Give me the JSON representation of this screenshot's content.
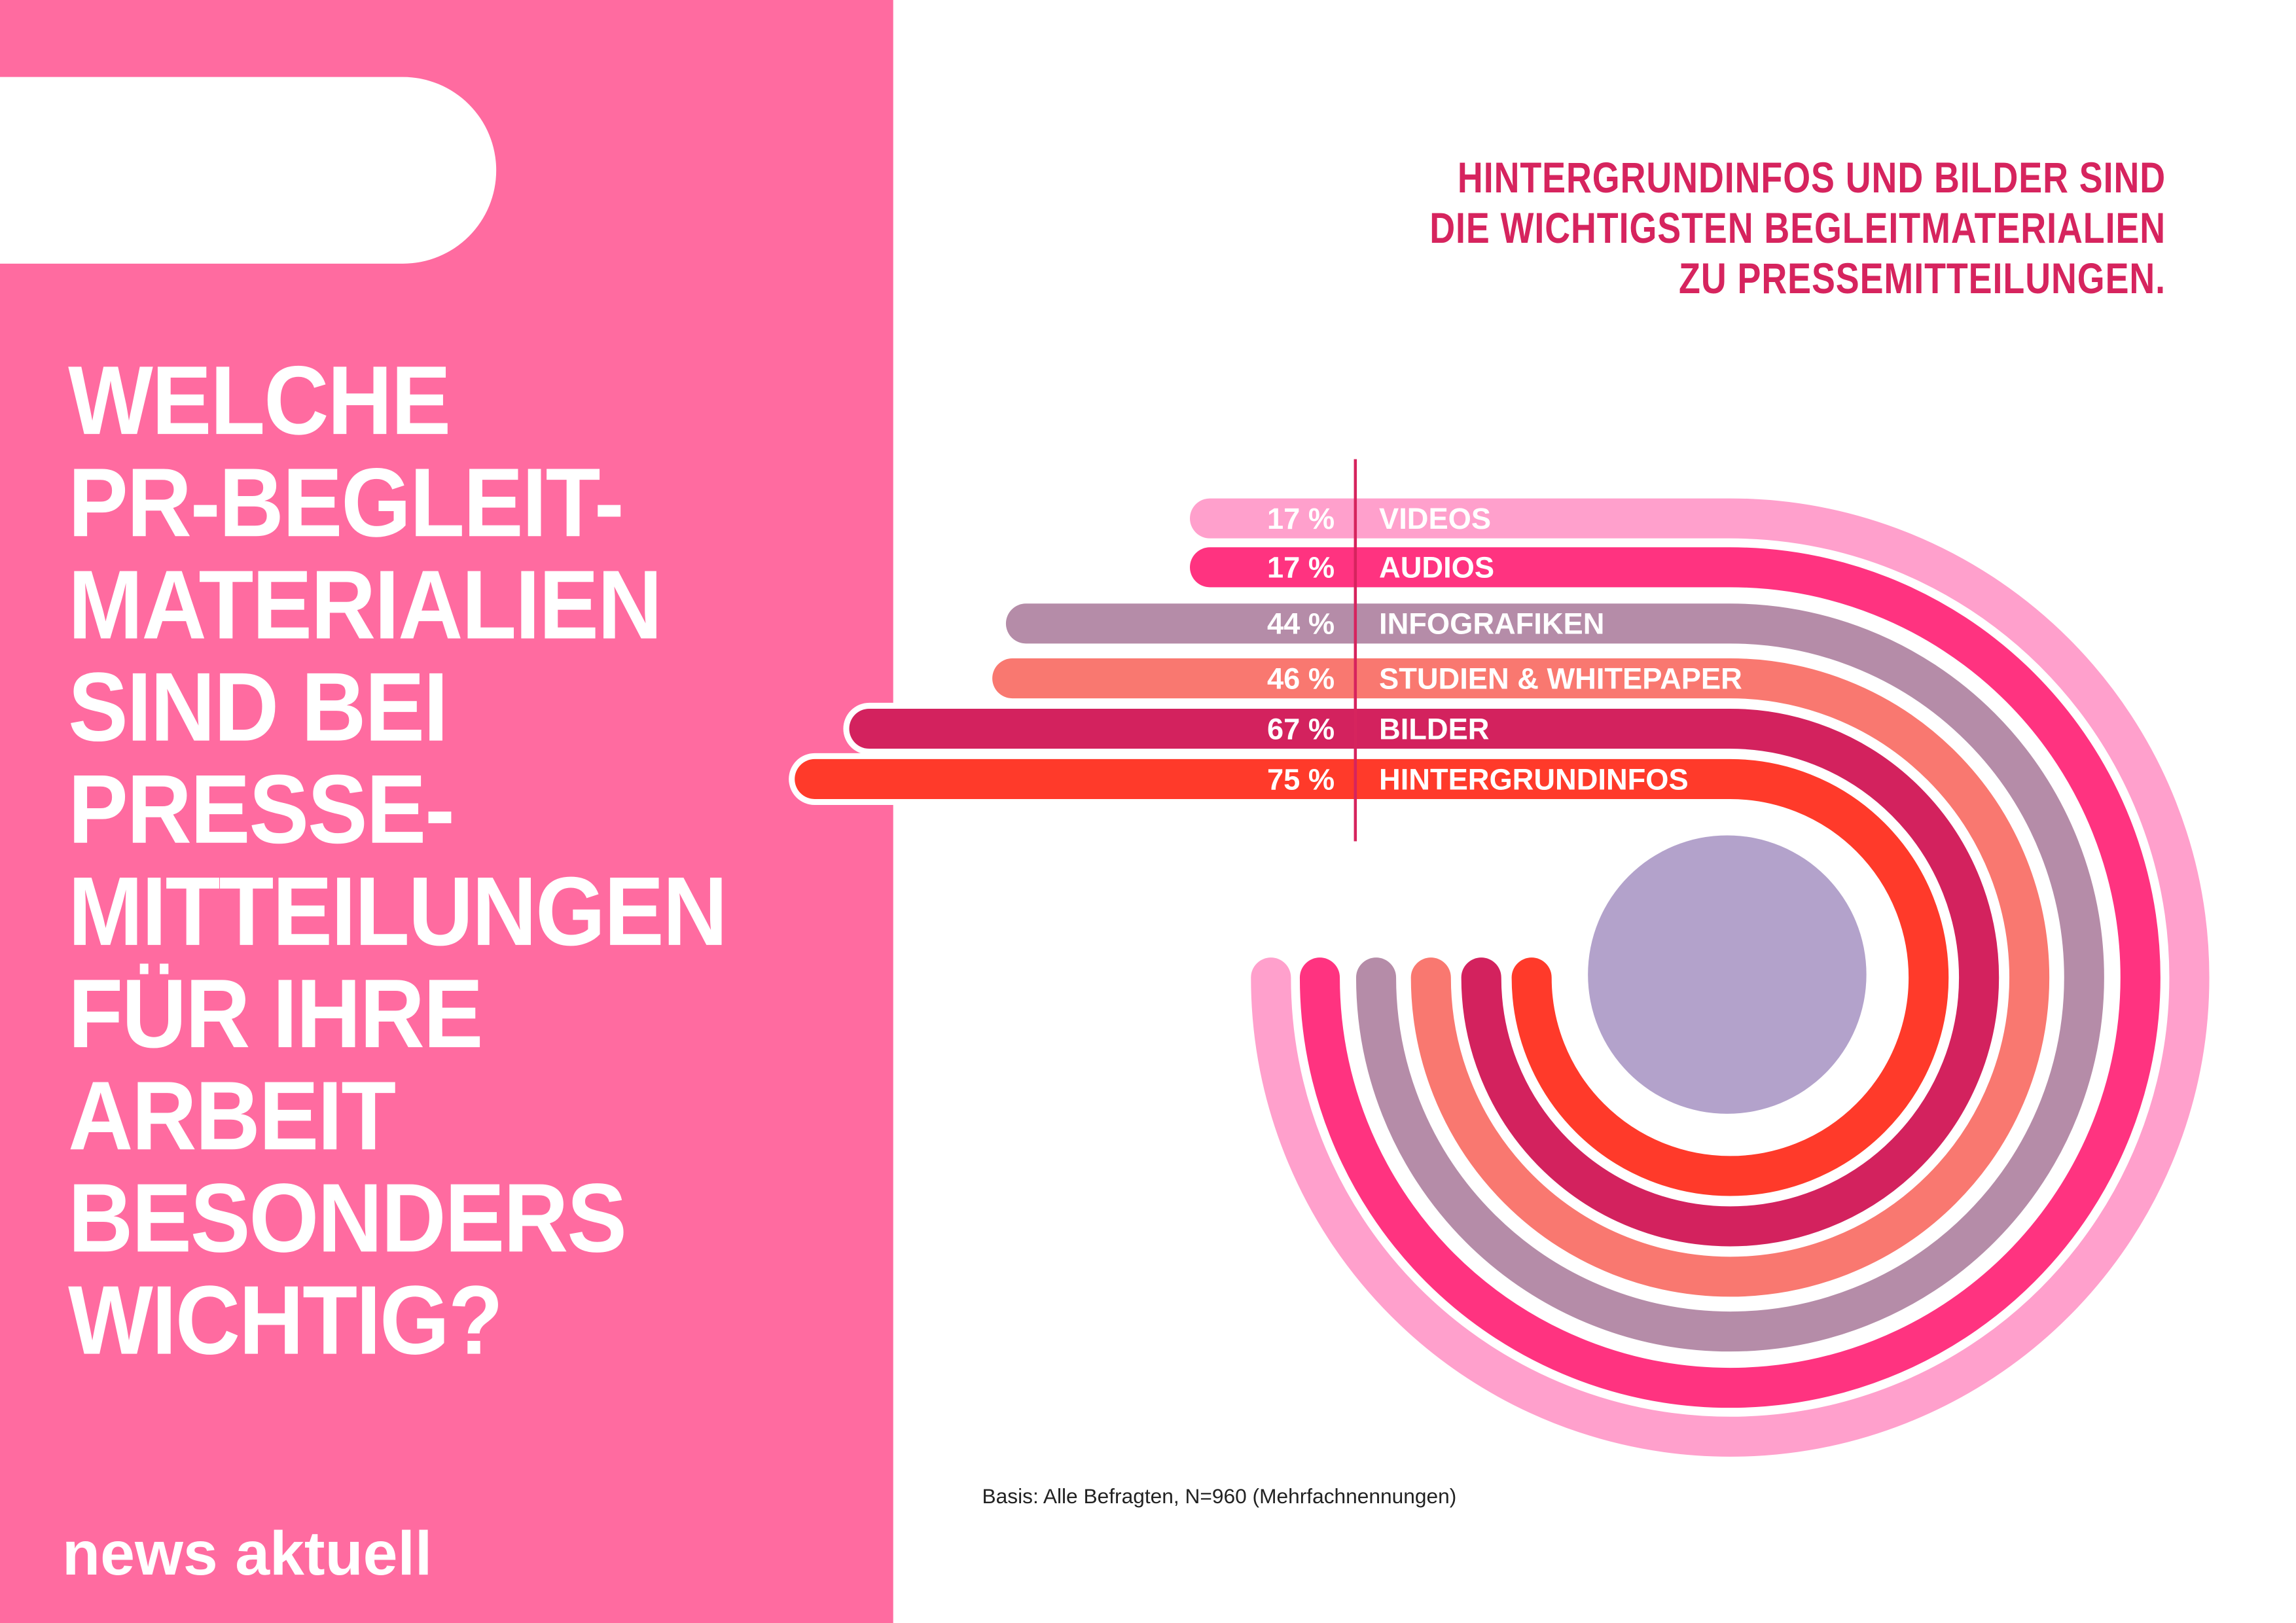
{
  "title_lines": [
    "WELCHE",
    "PR-BEGLEIT-",
    "MATERIALIEN",
    "SIND BEI",
    "PRESSE-",
    "MITTEILUNGEN",
    "FÜR IHRE",
    "ARBEIT",
    "BESONDERS",
    "WICHTIG?"
  ],
  "headline_lines": [
    "HINTERGRUNDINFOS UND BILDER SIND",
    "DIE WICHTIGSTEN BEGLEITMATERIALIEN",
    "ZU PRESSEMITTEILUNGEN."
  ],
  "logo": "news aktuell",
  "footnote": "Basis: Alle Befragten, N=960 (Mehrfachnennungen)",
  "colors": {
    "panel": "#FF6BA0",
    "headline": "#D6245E",
    "center_circle": "#B3A2CB"
  },
  "chart_data": {
    "type": "bar",
    "categories": [
      "VIDEOS",
      "AUDIOS",
      "INFOGRAFIKEN",
      "STUDIEN & WHITEPAPER",
      "BILDER",
      "HINTERGRUNDINFOS"
    ],
    "values": [
      17,
      17,
      44,
      46,
      67,
      75
    ],
    "value_labels": [
      "17 %",
      "17 %",
      "44 %",
      "46 %",
      "67 %",
      "75 %"
    ],
    "unit": "%",
    "colors": [
      "#FFA0CC",
      "#FF3380",
      "#B58CA8",
      "#F97870",
      "#D3225E",
      "#FF3A2A"
    ]
  }
}
